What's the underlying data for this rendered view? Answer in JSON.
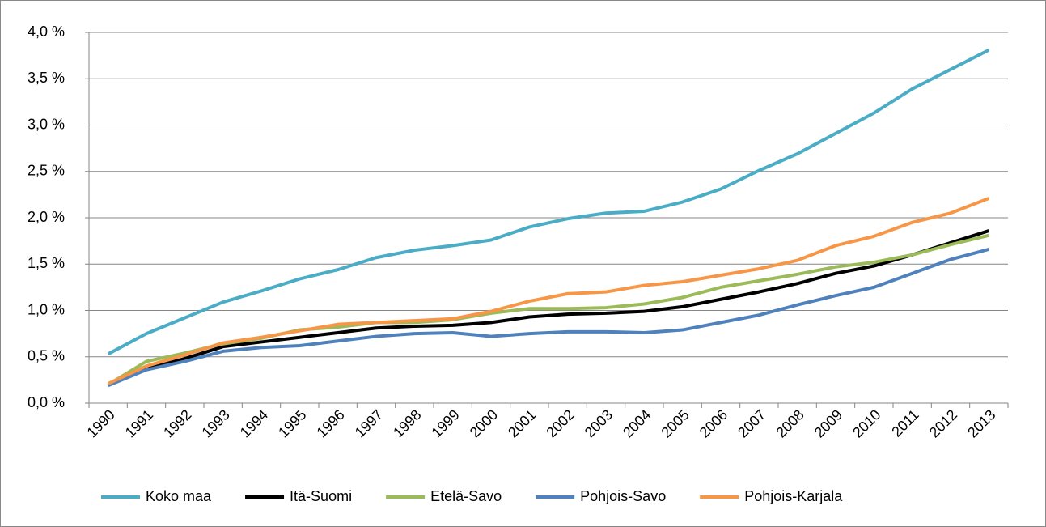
{
  "chart_data": {
    "type": "line",
    "categories": [
      "1990",
      "1991",
      "1992",
      "1993",
      "1994",
      "1995",
      "1996",
      "1997",
      "1998",
      "1999",
      "2000",
      "2001",
      "2002",
      "2003",
      "2004",
      "2005",
      "2006",
      "2007",
      "2008",
      "2009",
      "2010",
      "2011",
      "2012",
      "2013"
    ],
    "series": [
      {
        "name": "Koko maa",
        "color": "#4bacc6",
        "values": [
          0.53,
          0.75,
          0.92,
          1.09,
          1.21,
          1.34,
          1.44,
          1.57,
          1.65,
          1.7,
          1.76,
          1.9,
          1.99,
          2.05,
          2.07,
          2.17,
          2.31,
          2.51,
          2.69,
          2.91,
          3.13,
          3.39,
          3.6,
          3.81
        ]
      },
      {
        "name": "Itä-Suomi",
        "color": "#000000",
        "values": [
          0.2,
          0.37,
          0.48,
          0.61,
          0.66,
          0.71,
          0.76,
          0.81,
          0.83,
          0.84,
          0.87,
          0.93,
          0.96,
          0.97,
          0.99,
          1.04,
          1.12,
          1.2,
          1.29,
          1.4,
          1.48,
          1.6,
          1.73,
          1.86
        ]
      },
      {
        "name": "Etelä-Savo",
        "color": "#9bbb59",
        "values": [
          0.2,
          0.45,
          0.54,
          0.64,
          0.7,
          0.79,
          0.82,
          0.87,
          0.87,
          0.9,
          0.97,
          1.02,
          1.02,
          1.03,
          1.07,
          1.14,
          1.25,
          1.32,
          1.39,
          1.47,
          1.52,
          1.6,
          1.71,
          1.81
        ]
      },
      {
        "name": "Pohjois-Savo",
        "color": "#4f81bd",
        "values": [
          0.19,
          0.36,
          0.45,
          0.56,
          0.6,
          0.62,
          0.67,
          0.72,
          0.75,
          0.76,
          0.72,
          0.75,
          0.77,
          0.77,
          0.76,
          0.79,
          0.87,
          0.95,
          1.06,
          1.16,
          1.25,
          1.4,
          1.55,
          1.66
        ]
      },
      {
        "name": "Pohjois-Karjala",
        "color": "#f79646",
        "values": [
          0.21,
          0.4,
          0.52,
          0.65,
          0.71,
          0.78,
          0.85,
          0.87,
          0.89,
          0.91,
          0.99,
          1.1,
          1.18,
          1.2,
          1.27,
          1.31,
          1.38,
          1.45,
          1.54,
          1.7,
          1.8,
          1.95,
          2.05,
          2.21
        ]
      }
    ],
    "ylim": [
      0,
      4
    ],
    "yticks": [
      {
        "value": 0,
        "label": "0,0 %"
      },
      {
        "value": 0.5,
        "label": "0,5 %"
      },
      {
        "value": 1,
        "label": "1,0 %"
      },
      {
        "value": 1.5,
        "label": "1,5 %"
      },
      {
        "value": 2,
        "label": "2,0 %"
      },
      {
        "value": 2.5,
        "label": "2,5 %"
      },
      {
        "value": 3,
        "label": "3,0 %"
      },
      {
        "value": 3.5,
        "label": "3,5 %"
      },
      {
        "value": 4,
        "label": "4,0 %"
      }
    ],
    "grid": true,
    "legend": "bottom"
  }
}
